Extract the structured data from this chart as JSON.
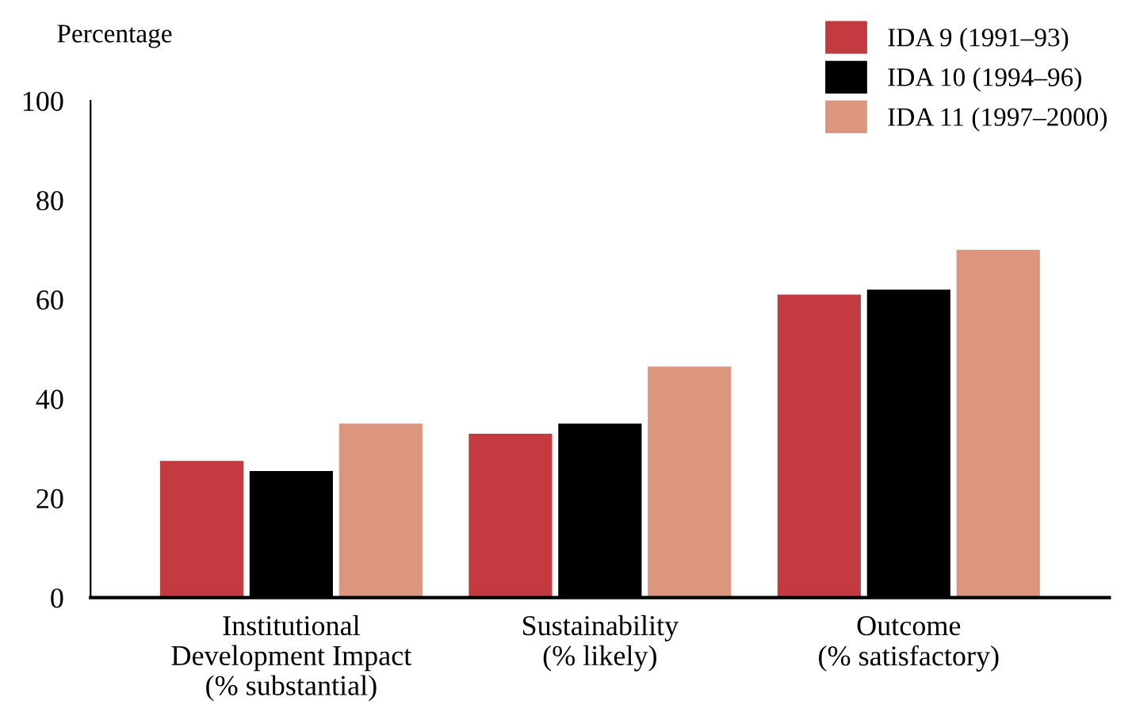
{
  "chart_data": {
    "type": "bar",
    "ylabel": "Percentage",
    "categories": [
      "Institutional\nDevelopment Impact\n(% substantial)",
      "Sustainability\n(% likely)",
      "Outcome\n(% satisfactory)"
    ],
    "series": [
      {
        "name": "IDA 9 (1991–93)",
        "color": "#c33a41",
        "values": [
          27.5,
          33,
          61
        ]
      },
      {
        "name": "IDA 10 (1994–96)",
        "color": "#000000",
        "values": [
          25.5,
          35,
          62
        ]
      },
      {
        "name": "IDA 11 (1997–2000)",
        "color": "#dd9580",
        "values": [
          35,
          46.5,
          70
        ]
      }
    ],
    "ylim": [
      0,
      100
    ],
    "yticks": [
      0,
      20,
      40,
      60,
      80,
      100
    ],
    "grid": false,
    "legend": "top right"
  }
}
